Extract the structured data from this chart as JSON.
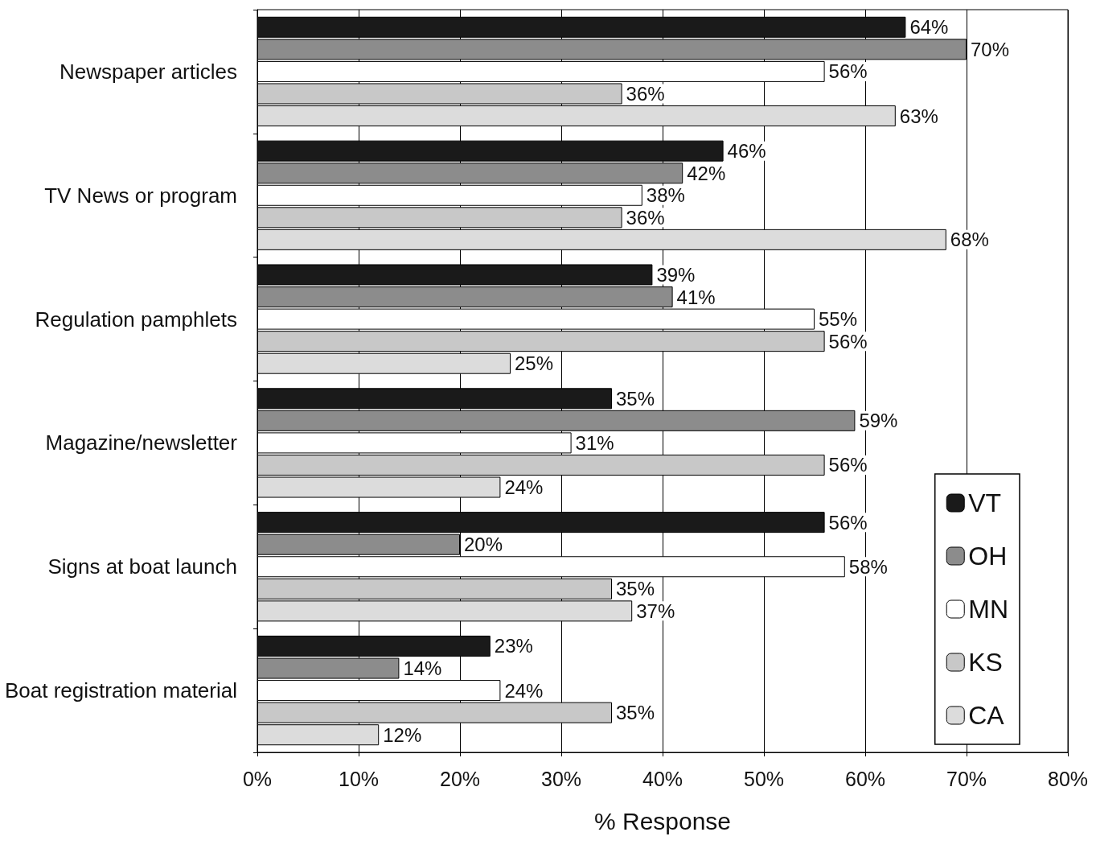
{
  "chart_data": {
    "type": "bar",
    "orientation": "horizontal",
    "xlabel": "% Response",
    "categories": [
      "Newspaper articles",
      "TV News or program",
      "Regulation pamphlets",
      "Magazine/newsletter",
      "Signs at boat launch",
      "Boat registration material"
    ],
    "series": [
      {
        "name": "VT",
        "color": "#1a1a1a",
        "values": [
          64,
          46,
          39,
          35,
          56,
          23
        ],
        "value_labels": [
          "64%",
          "46%",
          "39%",
          "35%",
          "56%",
          "23%"
        ]
      },
      {
        "name": "OH",
        "color": "#8c8c8c",
        "values": [
          70,
          42,
          41,
          59,
          20,
          14
        ],
        "value_labels": [
          "70%",
          "42%",
          "41%",
          "59%",
          "20%",
          "14%"
        ]
      },
      {
        "name": "MN",
        "color": "#ffffff",
        "values": [
          56,
          38,
          55,
          31,
          58,
          24
        ],
        "value_labels": [
          "56%",
          "38%",
          "55%",
          "31%",
          "58%",
          "24%"
        ]
      },
      {
        "name": "KS",
        "color": "#c8c8c8",
        "values": [
          36,
          36,
          56,
          56,
          35,
          35
        ],
        "value_labels": [
          "36%",
          "36%",
          "56%",
          "56%",
          "35%",
          "35%"
        ]
      },
      {
        "name": "CA",
        "color": "#dcdcdc",
        "values": [
          63,
          68,
          25,
          24,
          37,
          12
        ],
        "value_labels": [
          "63%",
          "68%",
          "25%",
          "24%",
          "37%",
          "12%"
        ]
      }
    ],
    "xlim": [
      0,
      80
    ],
    "xticks": [
      {
        "value": 0,
        "label": "0%"
      },
      {
        "value": 10,
        "label": "10%"
      },
      {
        "value": 20,
        "label": "20%"
      },
      {
        "value": 30,
        "label": "30%"
      },
      {
        "value": 40,
        "label": "40%"
      },
      {
        "value": 50,
        "label": "50%"
      },
      {
        "value": 60,
        "label": "60%"
      },
      {
        "value": 70,
        "label": "70%"
      },
      {
        "value": 80,
        "label": "80%"
      }
    ],
    "grid": "x",
    "legend": "bottom right"
  }
}
